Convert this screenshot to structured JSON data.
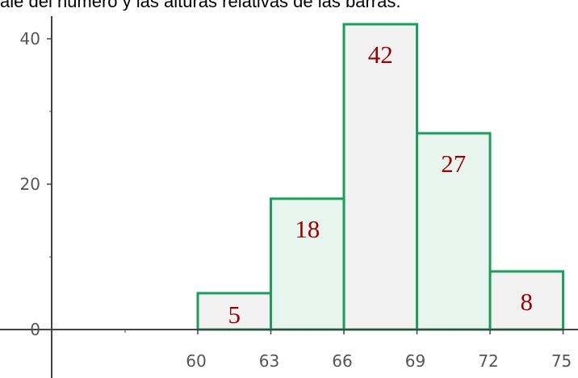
{
  "caption": "ale del número y las alturas relativas de las barras.",
  "chart_data": {
    "type": "bar",
    "title": "",
    "xlabel": "",
    "ylabel": "",
    "bins": [
      {
        "from": 60,
        "to": 63,
        "value": 5,
        "label": "5"
      },
      {
        "from": 63,
        "to": 66,
        "value": 18,
        "label": "18"
      },
      {
        "from": 66,
        "to": 69,
        "value": 42,
        "label": "42"
      },
      {
        "from": 69,
        "to": 72,
        "value": 27,
        "label": "27"
      },
      {
        "from": 72,
        "to": 75,
        "value": 8,
        "label": "8"
      }
    ],
    "x_ticks": [
      "60",
      "63",
      "66",
      "69",
      "72",
      "75"
    ],
    "y_ticks": [
      "0",
      "20",
      "40"
    ],
    "xlim": [
      41,
      75
    ],
    "ylim": [
      -3,
      43
    ],
    "grid": false,
    "colors": {
      "bar_edge": "#1a9e5c",
      "bar_fill_light": "#f2f2f2",
      "bar_fill_green": "#e8f5ee",
      "label": "#990000",
      "axis": "#444444"
    }
  }
}
